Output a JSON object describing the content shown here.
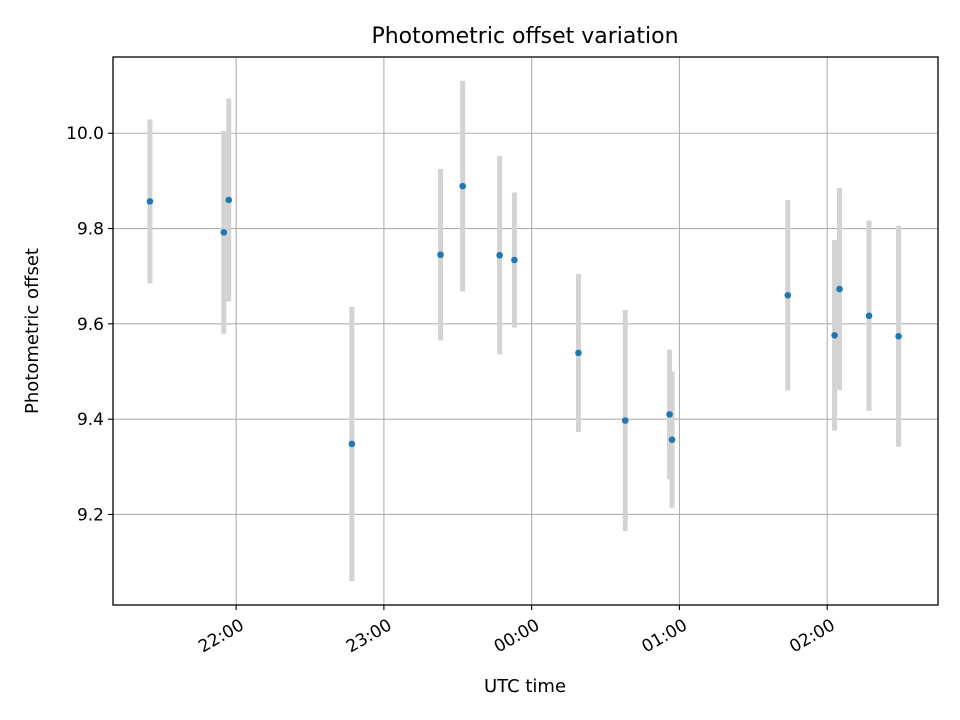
{
  "chart_data": {
    "type": "scatter",
    "title": "Photometric offset variation",
    "xlabel": "UTC time",
    "ylabel": "Photometric offset",
    "xlim": [
      "21:10",
      "02:45"
    ],
    "ylim": [
      9.01,
      10.16
    ],
    "xticks": [
      "22:00",
      "23:00",
      "00:00",
      "01:00",
      "02:00"
    ],
    "yticks": [
      9.2,
      9.4,
      9.6,
      9.8,
      10.0
    ],
    "ytick_labels": [
      "9.2",
      "9.4",
      "9.6",
      "9.8",
      "10.0"
    ],
    "grid": true,
    "colors": {
      "point": "#1f77b4",
      "errorbar": "#d3d3d3",
      "grid": "#b0b0b0"
    },
    "points": [
      {
        "x": "21:25",
        "y": 9.857,
        "err": 0.172
      },
      {
        "x": "21:55",
        "y": 9.792,
        "err": 0.213
      },
      {
        "x": "21:57",
        "y": 9.86,
        "err": 0.213
      },
      {
        "x": "22:47",
        "y": 9.348,
        "err": 0.288
      },
      {
        "x": "23:23",
        "y": 9.745,
        "err": 0.18
      },
      {
        "x": "23:32",
        "y": 9.889,
        "err": 0.221
      },
      {
        "x": "23:47",
        "y": 9.744,
        "err": 0.208
      },
      {
        "x": "23:53",
        "y": 9.734,
        "err": 0.142
      },
      {
        "x": "00:19",
        "y": 9.539,
        "err": 0.166
      },
      {
        "x": "00:38",
        "y": 9.397,
        "err": 0.232
      },
      {
        "x": "00:56",
        "y": 9.41,
        "err": 0.136
      },
      {
        "x": "00:57",
        "y": 9.357,
        "err": 0.143
      },
      {
        "x": "01:44",
        "y": 9.66,
        "err": 0.2
      },
      {
        "x": "02:03",
        "y": 9.576,
        "err": 0.2
      },
      {
        "x": "02:05",
        "y": 9.673,
        "err": 0.212
      },
      {
        "x": "02:17",
        "y": 9.617,
        "err": 0.2
      },
      {
        "x": "02:29",
        "y": 9.574,
        "err": 0.232
      }
    ]
  }
}
